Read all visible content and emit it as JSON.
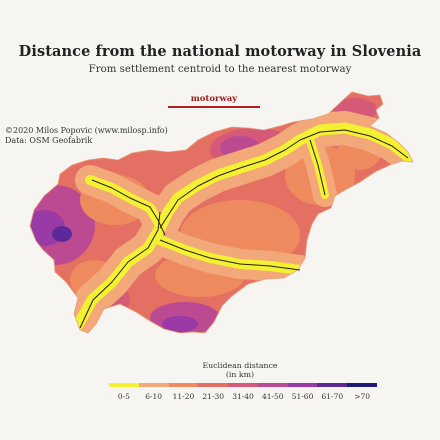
{
  "title": "Distance from the national motorway in Slovenia",
  "subtitle": "From settlement centroid to the nearest motorway",
  "legend": {
    "motorway_label": "motorway",
    "motorway_color": "#b31d1d"
  },
  "credits": {
    "line1": "©2020 Milos Popovic (www.milosp.info)",
    "line2": "Data: OSM Geofabrik"
  },
  "scale": {
    "title_line1": "Euclidean distance",
    "title_line2": "(in km)",
    "classes": [
      {
        "label": "0-5",
        "color": "#f2f232"
      },
      {
        "label": "6-10",
        "color": "#f3a87a"
      },
      {
        "label": "11-20",
        "color": "#ef8a5e"
      },
      {
        "label": "21-30",
        "color": "#e47063"
      },
      {
        "label": "31-40",
        "color": "#d45a78"
      },
      {
        "label": "41-50",
        "color": "#bb4a92"
      },
      {
        "label": "51-60",
        "color": "#9a3aa6"
      },
      {
        "label": "61-70",
        "color": "#5c2a98"
      },
      {
        "label": ">70",
        "color": "#1f1a7a"
      }
    ]
  }
}
